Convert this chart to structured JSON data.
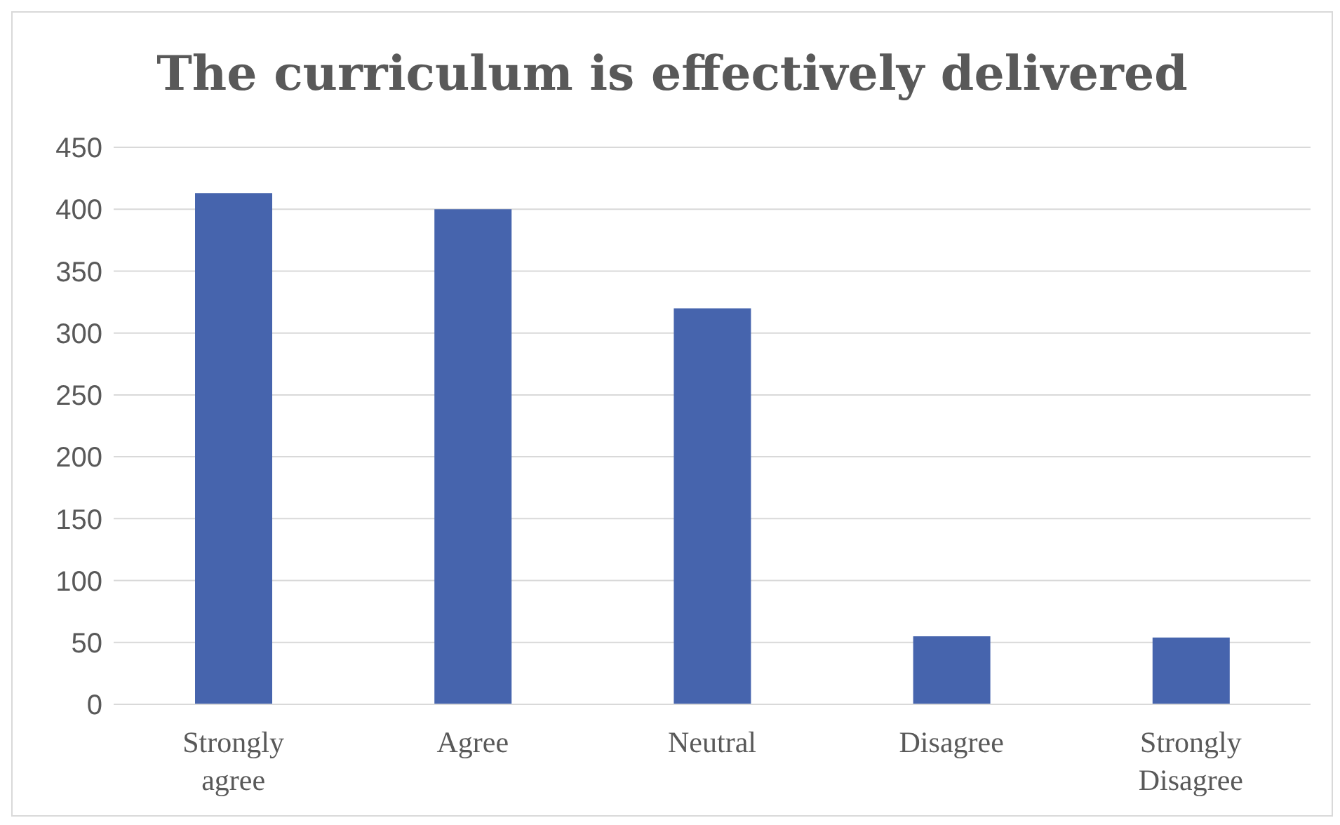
{
  "chart_data": {
    "type": "bar",
    "title": "The curriculum is effectively delivered",
    "categories": [
      "Strongly agree",
      "Agree",
      "Neutral",
      "Disagree",
      "Strongly Disagree"
    ],
    "values": [
      413,
      400,
      320,
      55,
      54
    ],
    "color": "#4664ad",
    "ylim": [
      0,
      450
    ],
    "yticks": [
      0,
      50,
      100,
      150,
      200,
      250,
      300,
      350,
      400,
      450
    ],
    "grid": "y"
  }
}
